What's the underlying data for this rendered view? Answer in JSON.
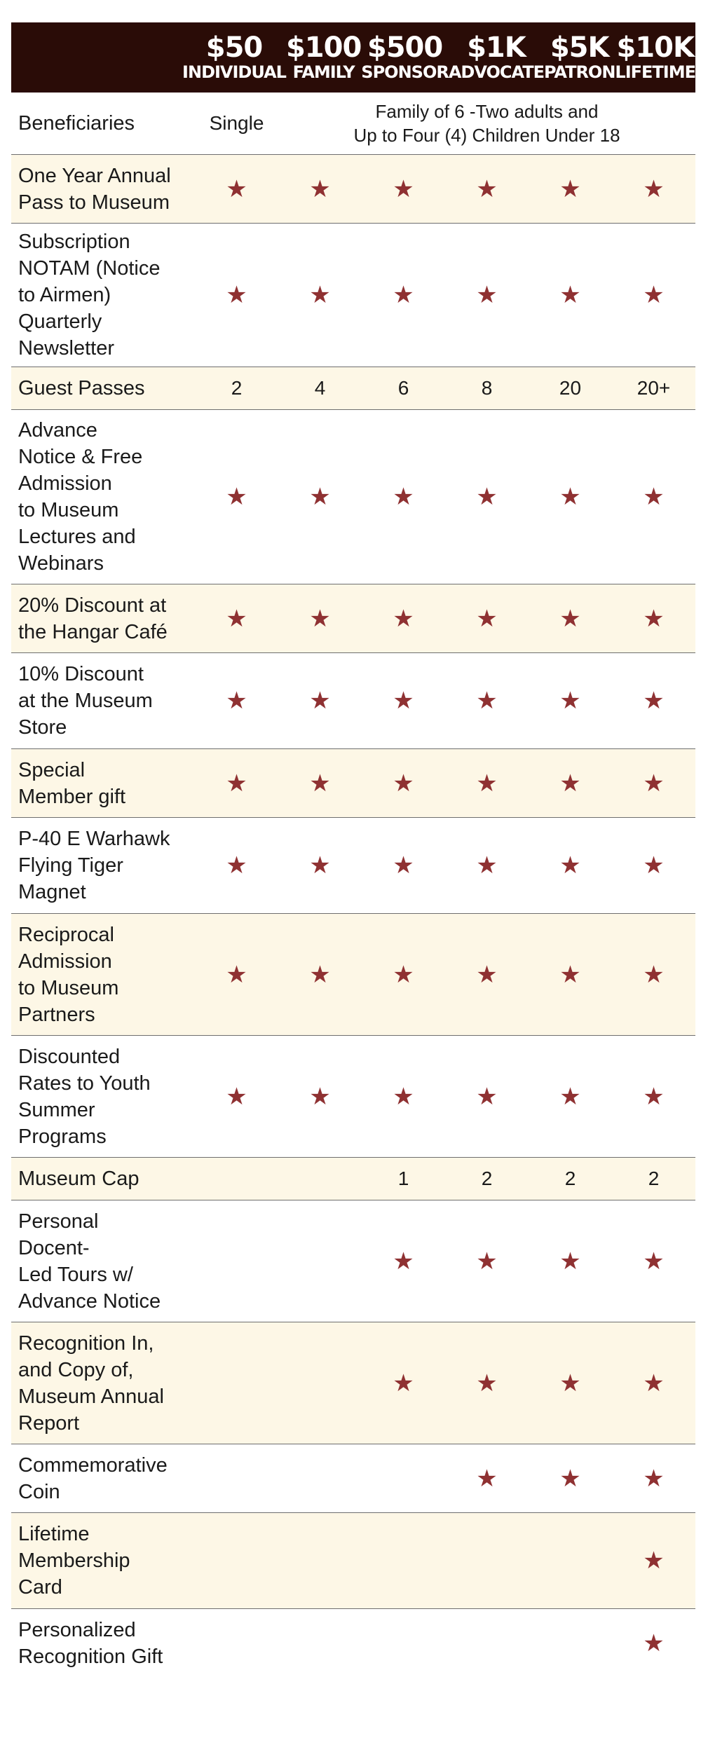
{
  "colors": {
    "header_bg": "#2a0c07",
    "row_tint": "#fdf7e6",
    "star": "#8f3132"
  },
  "tiers": [
    {
      "price": "$50",
      "name": "INDIVIDUAL"
    },
    {
      "price": "$100",
      "name": "FAMILY"
    },
    {
      "price": "$500",
      "name": "SPONSOR"
    },
    {
      "price": "$1K",
      "name": "ADVOCATE"
    },
    {
      "price": "$5K",
      "name": "PATRON"
    },
    {
      "price": "$10K",
      "name": "LIFETIME"
    }
  ],
  "beneficiaries": {
    "label": "Beneficiaries",
    "individual": "Single",
    "family_line1": "Family of 6 -Two adults and",
    "family_line2": "Up to Four (4) Children Under 18"
  },
  "rows": [
    {
      "label_lines": [
        "One Year Annual",
        "Pass to Museum"
      ],
      "values": [
        "star",
        "star",
        "star",
        "star",
        "star",
        "star"
      ]
    },
    {
      "label_lines": [
        "Subscription",
        "NOTAM (Notice",
        "to Airmen)",
        "Quarterly",
        "Newsletter"
      ],
      "values": [
        "star",
        "star",
        "star",
        "star",
        "star",
        "star"
      ]
    },
    {
      "label_lines": [
        "Guest Passes"
      ],
      "values": [
        "2",
        "4",
        "6",
        "8",
        "20",
        "20+"
      ]
    },
    {
      "label_lines": [
        "Advance",
        "Notice & Free",
        "Admission",
        "to Museum",
        "Lectures and",
        "Webinars"
      ],
      "values": [
        "star",
        "star",
        "star",
        "star",
        "star",
        "star"
      ]
    },
    {
      "label_lines": [
        "20% Discount at",
        "the Hangar Café"
      ],
      "values": [
        "star",
        "star",
        "star",
        "star",
        "star",
        "star"
      ]
    },
    {
      "label_lines": [
        "10% Discount",
        "at the Museum",
        "Store"
      ],
      "values": [
        "star",
        "star",
        "star",
        "star",
        "star",
        "star"
      ]
    },
    {
      "label_lines": [
        "Special",
        "Member gift"
      ],
      "values": [
        "star",
        "star",
        "star",
        "star",
        "star",
        "star"
      ]
    },
    {
      "label_lines": [
        "P-40 E Warhawk",
        "Flying Tiger",
        "Magnet"
      ],
      "values": [
        "star",
        "star",
        "star",
        "star",
        "star",
        "star"
      ]
    },
    {
      "label_lines": [
        "Reciprocal",
        "Admission",
        "to Museum",
        "Partners"
      ],
      "values": [
        "star",
        "star",
        "star",
        "star",
        "star",
        "star"
      ]
    },
    {
      "label_lines": [
        "Discounted",
        "Rates to Youth",
        "Summer",
        "Programs"
      ],
      "values": [
        "star",
        "star",
        "star",
        "star",
        "star",
        "star"
      ]
    },
    {
      "label_lines": [
        "Museum Cap"
      ],
      "values": [
        "",
        "",
        "1",
        "2",
        "2",
        "2"
      ]
    },
    {
      "label_lines": [
        "Personal",
        "Docent-",
        "Led Tours w/",
        "Advance Notice"
      ],
      "values": [
        "",
        "",
        "star",
        "star",
        "star",
        "star"
      ]
    },
    {
      "label_lines": [
        "Recognition In,",
        "and Copy of,",
        "Museum Annual",
        "Report"
      ],
      "values": [
        "",
        "",
        "star",
        "star",
        "star",
        "star"
      ]
    },
    {
      "label_lines": [
        "Commemorative",
        "Coin"
      ],
      "values": [
        "",
        "",
        "",
        "star",
        "star",
        "star"
      ]
    },
    {
      "label_lines": [
        "Lifetime",
        "Membership",
        "Card"
      ],
      "values": [
        "",
        "",
        "",
        "",
        "",
        "star"
      ]
    },
    {
      "label_lines": [
        "Personalized",
        "Recognition Gift"
      ],
      "values": [
        "",
        "",
        "",
        "",
        "",
        "star"
      ]
    }
  ],
  "star_glyph": "★"
}
